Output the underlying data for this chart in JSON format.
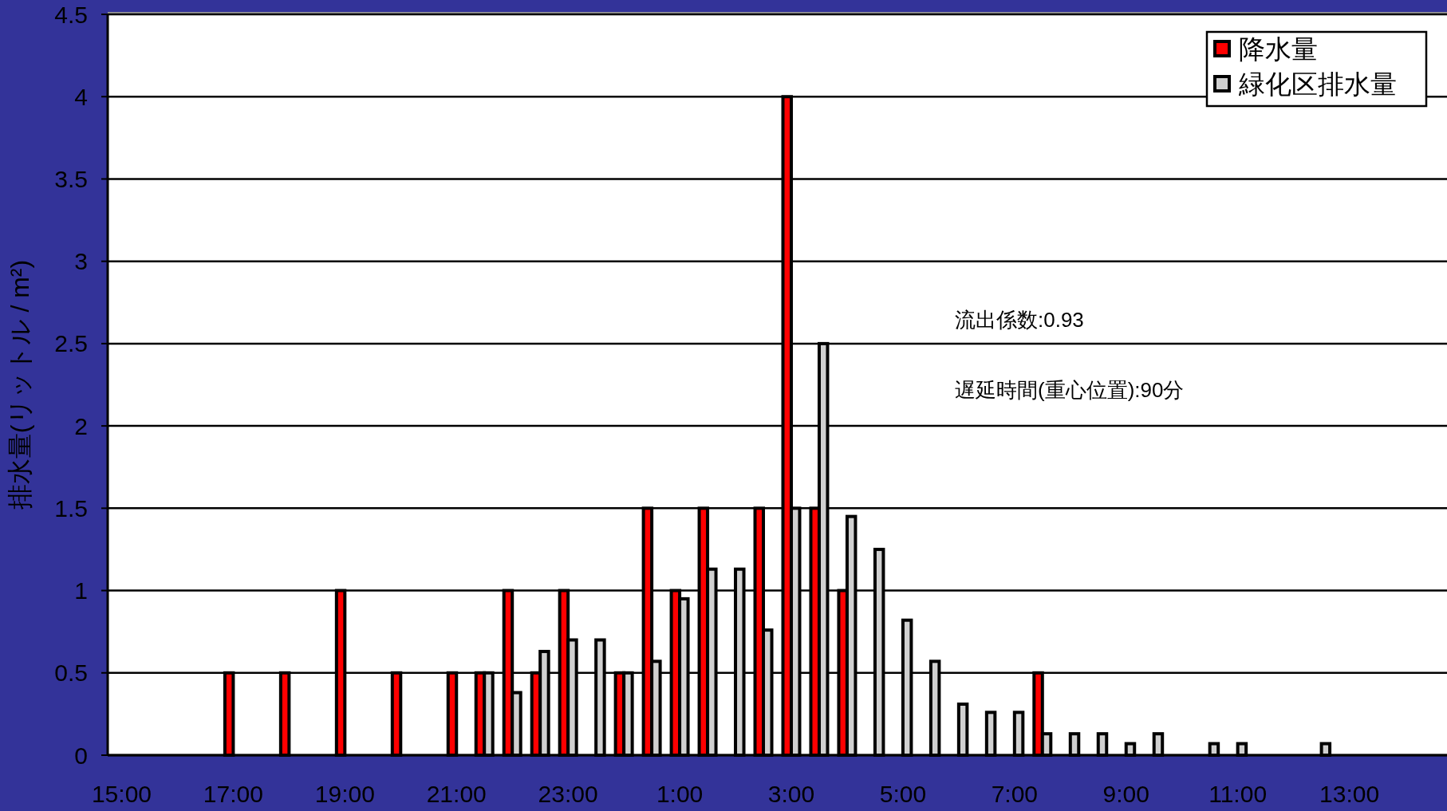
{
  "chart_data": {
    "type": "bar",
    "ylabel": "排水量(リットル / m²)",
    "categories": [
      "15:00",
      null,
      null,
      null,
      "17:00",
      null,
      null,
      null,
      "19:00",
      null,
      null,
      null,
      "21:00",
      null,
      null,
      null,
      "23:00",
      null,
      null,
      null,
      "1:00",
      null,
      null,
      null,
      "3:00",
      null,
      null,
      null,
      "5:00",
      null,
      null,
      null,
      "7:00",
      null,
      null,
      null,
      "9:00",
      null,
      null,
      null,
      "11:00",
      null,
      null,
      null,
      "13:00",
      null,
      null,
      null
    ],
    "series": [
      {
        "name": "降水量",
        "color": "#ff0000",
        "values": [
          null,
          null,
          null,
          null,
          0.5,
          null,
          0.5,
          null,
          1,
          null,
          0.5,
          null,
          0.5,
          0.5,
          1,
          0.5,
          1,
          null,
          0.5,
          1.5,
          1,
          1.5,
          null,
          1.5,
          4,
          1.5,
          1,
          null,
          null,
          null,
          null,
          null,
          null,
          0.5,
          null,
          null,
          null,
          null,
          null,
          null,
          null,
          null,
          null,
          null,
          null,
          null,
          null,
          null
        ]
      },
      {
        "name": "緑化区排水量",
        "color": "#d0d0d0",
        "values": [
          null,
          null,
          null,
          null,
          null,
          null,
          null,
          null,
          null,
          null,
          null,
          null,
          null,
          0.5,
          0.38,
          0.63,
          0.7,
          0.7,
          0.5,
          0.57,
          0.95,
          1.13,
          1.13,
          0.76,
          1.5,
          2.5,
          1.45,
          1.25,
          0.82,
          0.57,
          0.31,
          0.26,
          0.26,
          0.13,
          0.13,
          0.13,
          0.07,
          0.13,
          null,
          0.07,
          0.07,
          null,
          null,
          0.07,
          null,
          null,
          null,
          null
        ]
      }
    ],
    "ylim": [
      0,
      4.5
    ],
    "yticks": [
      0,
      0.5,
      1,
      1.5,
      2,
      2.5,
      3,
      3.5,
      4,
      4.5
    ],
    "grid": "y",
    "legend": "top right",
    "annotations": [
      "流出係数:0.93",
      "遅延時間(重心位置):90分"
    ]
  }
}
